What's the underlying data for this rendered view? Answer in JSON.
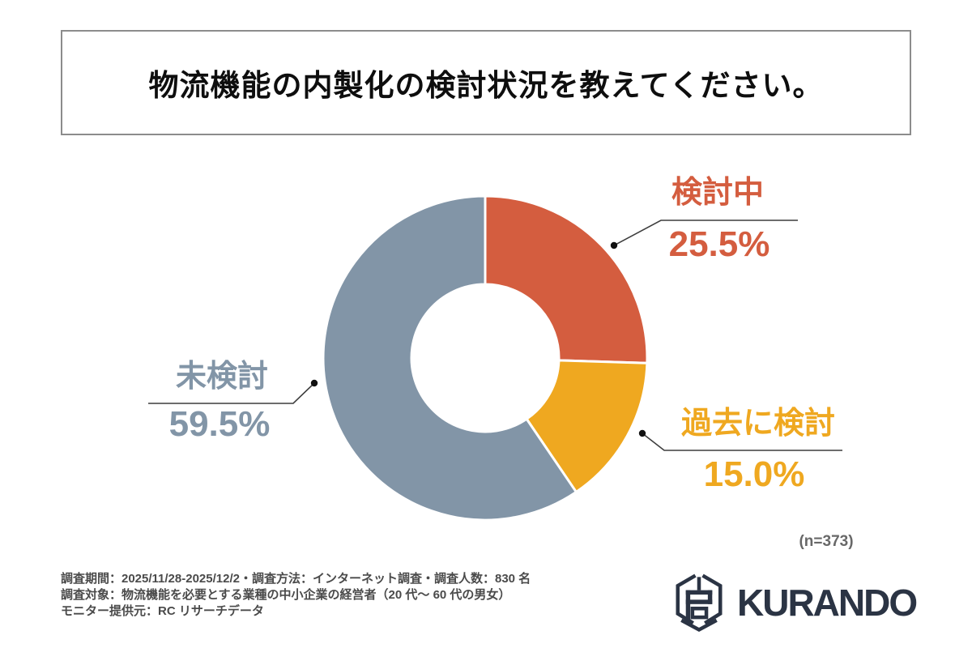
{
  "title": "物流機能の内製化の検討状況を教えてください。",
  "chart_data": {
    "type": "pie",
    "subtype": "donut",
    "title": "物流機能の内製化の検討状況を教えてください。",
    "categories": [
      "検討中",
      "過去に検討",
      "未検討"
    ],
    "values": [
      25.5,
      15.0,
      59.5
    ],
    "labels": [
      "25.5%",
      "15.0%",
      "59.5%"
    ],
    "colors": [
      "#d45d3f",
      "#efa820",
      "#8295a7"
    ],
    "n_label": "(n=373)",
    "start_angle_deg": 0,
    "direction": "clockwise",
    "legend": "none",
    "label_style": "external-leader-lines"
  },
  "footer": {
    "line1": "調査期間：2025/11/28-2025/12/2・調査方法：インターネット調査・調査人数：830 名",
    "line2": "調査対象：物流機能を必要とする業種の中小企業の経営者（20 代〜 60 代の男女）",
    "line3": "モニター提供元：RC リサーチデータ"
  },
  "branding": {
    "logo_text": "KURANDO"
  }
}
